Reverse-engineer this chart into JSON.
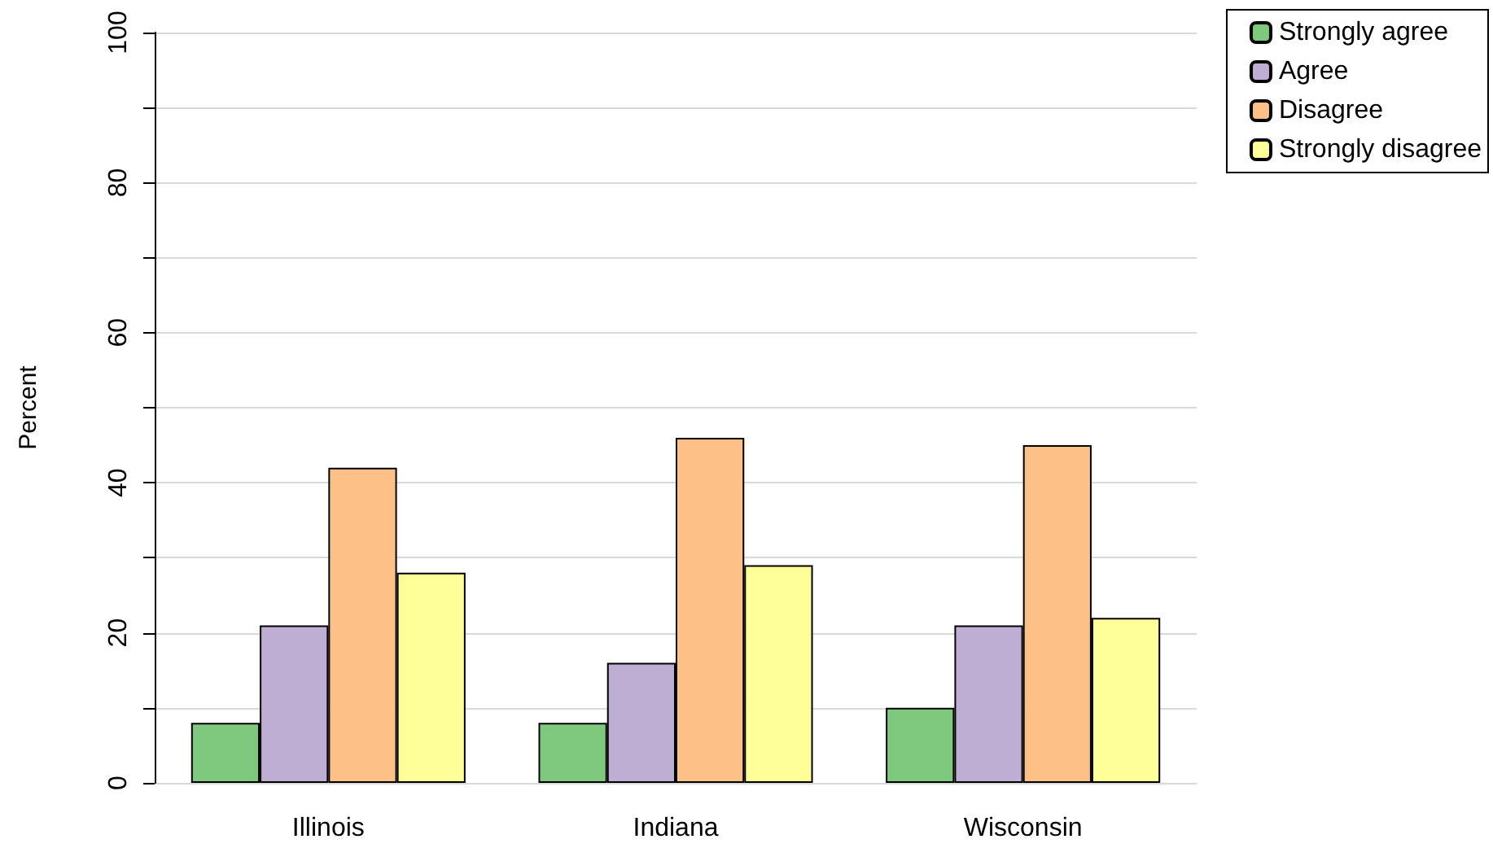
{
  "chart_data": {
    "type": "bar",
    "ylabel": "Percent",
    "categories": [
      "Illinois",
      "Indiana",
      "Wisconsin"
    ],
    "series": [
      {
        "name": "Strongly agree",
        "color": "#7fc97f",
        "values": [
          8,
          8,
          10
        ]
      },
      {
        "name": "Agree",
        "color": "#beaed4",
        "values": [
          21,
          16,
          21
        ]
      },
      {
        "name": "Disagree",
        "color": "#fdc086",
        "values": [
          42,
          46,
          45
        ]
      },
      {
        "name": "Strongly disagree",
        "color": "#ffff99",
        "values": [
          28,
          29,
          22
        ]
      }
    ],
    "ylim": [
      0,
      100
    ],
    "yticks": [
      0,
      {
        "value": 10,
        "label": null
      },
      20,
      {
        "value": 30,
        "label": null
      },
      40,
      {
        "value": 50,
        "label": null
      },
      60,
      {
        "value": 70,
        "label": null
      },
      80,
      {
        "value": 90,
        "label": null
      },
      100
    ],
    "grid": "y",
    "legend": "top right"
  }
}
